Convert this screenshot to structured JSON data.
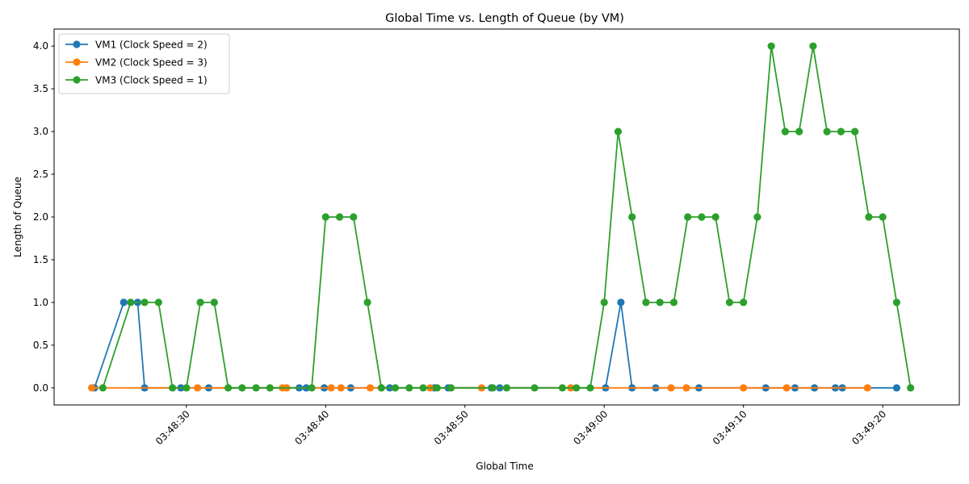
{
  "chart_data": {
    "type": "line",
    "title": "Global Time vs. Length of Queue (by VM)",
    "xlabel": "Global Time",
    "ylabel": "Length of Queue",
    "x_unit": "time (HH:MM:SS, 03:48:20 – 03:49:25)",
    "xlim": [
      "03:48:20.5",
      "03:49:25.5"
    ],
    "ylim": [
      -0.2,
      4.2
    ],
    "x_ticks": [
      "03:48:30",
      "03:48:40",
      "03:48:50",
      "03:49:00",
      "03:49:10",
      "03:49:20"
    ],
    "y_ticks": [
      "0.0",
      "0.5",
      "1.0",
      "1.5",
      "2.0",
      "2.5",
      "3.0",
      "3.5",
      "4.0"
    ],
    "legend_position": "upper-left",
    "grid": false,
    "series": [
      {
        "name": "VM1 (Clock Speed = 2)",
        "color": "#1f77b4",
        "points": [
          [
            "03:48:23.4",
            0
          ],
          [
            "03:48:25.5",
            1
          ],
          [
            "03:48:26.5",
            1
          ],
          [
            "03:48:27.0",
            0
          ],
          [
            "03:48:29.6",
            0
          ],
          [
            "03:48:31.6",
            0
          ],
          [
            "03:48:38.1",
            0
          ],
          [
            "03:48:38.6",
            0
          ],
          [
            "03:48:39.9",
            0
          ],
          [
            "03:48:41.8",
            0
          ],
          [
            "03:48:44.6",
            0
          ],
          [
            "03:48:47.8",
            0
          ],
          [
            "03:48:48.8",
            0
          ],
          [
            "03:48:51.9",
            0
          ],
          [
            "03:48:52.5",
            0
          ],
          [
            "03:49:00.1",
            0
          ],
          [
            "03:49:01.2",
            1
          ],
          [
            "03:49:02.0",
            0
          ],
          [
            "03:49:03.7",
            0
          ],
          [
            "03:49:06.8",
            0
          ],
          [
            "03:49:11.6",
            0
          ],
          [
            "03:49:13.7",
            0
          ],
          [
            "03:49:15.1",
            0
          ],
          [
            "03:49:16.6",
            0
          ],
          [
            "03:49:17.1",
            0
          ],
          [
            "03:49:21.0",
            0
          ]
        ]
      },
      {
        "name": "VM2 (Clock Speed = 3)",
        "color": "#ff7f0e",
        "points": [
          [
            "03:48:23.2",
            0
          ],
          [
            "03:48:30.8",
            0
          ],
          [
            "03:48:36.9",
            0
          ],
          [
            "03:48:37.2",
            0
          ],
          [
            "03:48:40.4",
            0
          ],
          [
            "03:48:41.1",
            0
          ],
          [
            "03:48:43.2",
            0
          ],
          [
            "03:48:44.0",
            0
          ],
          [
            "03:48:47.5",
            0
          ],
          [
            "03:48:51.2",
            0
          ],
          [
            "03:48:57.6",
            0
          ],
          [
            "03:49:04.8",
            0
          ],
          [
            "03:49:05.9",
            0
          ],
          [
            "03:49:10.0",
            0
          ],
          [
            "03:49:13.1",
            0
          ],
          [
            "03:49:18.9",
            0
          ]
        ]
      },
      {
        "name": "VM3 (Clock Speed = 1)",
        "color": "#2ca02c",
        "points": [
          [
            "03:48:24.0",
            0
          ],
          [
            "03:48:26.0",
            1
          ],
          [
            "03:48:27.0",
            1
          ],
          [
            "03:48:28.0",
            1
          ],
          [
            "03:48:29.0",
            0
          ],
          [
            "03:48:30.0",
            0
          ],
          [
            "03:48:31.0",
            1
          ],
          [
            "03:48:32.0",
            1
          ],
          [
            "03:48:33.0",
            0
          ],
          [
            "03:48:34.0",
            0
          ],
          [
            "03:48:35.0",
            0
          ],
          [
            "03:48:36.0",
            0
          ],
          [
            "03:48:39.0",
            0
          ],
          [
            "03:48:40.0",
            2
          ],
          [
            "03:48:41.0",
            2
          ],
          [
            "03:48:42.0",
            2
          ],
          [
            "03:48:43.0",
            1
          ],
          [
            "03:48:44.0",
            0
          ],
          [
            "03:48:45.0",
            0
          ],
          [
            "03:48:46.0",
            0
          ],
          [
            "03:48:47.0",
            0
          ],
          [
            "03:48:48.0",
            0
          ],
          [
            "03:48:49.0",
            0
          ],
          [
            "03:48:52.0",
            0
          ],
          [
            "03:48:53.0",
            0
          ],
          [
            "03:48:55.0",
            0
          ],
          [
            "03:48:57.0",
            0
          ],
          [
            "03:48:58.0",
            0
          ],
          [
            "03:48:59.0",
            0
          ],
          [
            "03:49:00.0",
            1
          ],
          [
            "03:49:01.0",
            3
          ],
          [
            "03:49:02.0",
            2
          ],
          [
            "03:49:03.0",
            1
          ],
          [
            "03:49:04.0",
            1
          ],
          [
            "03:49:05.0",
            1
          ],
          [
            "03:49:06.0",
            2
          ],
          [
            "03:49:07.0",
            2
          ],
          [
            "03:49:08.0",
            2
          ],
          [
            "03:49:09.0",
            1
          ],
          [
            "03:49:10.0",
            1
          ],
          [
            "03:49:11.0",
            2
          ],
          [
            "03:49:12.0",
            4
          ],
          [
            "03:49:13.0",
            3
          ],
          [
            "03:49:14.0",
            3
          ],
          [
            "03:49:15.0",
            4
          ],
          [
            "03:49:16.0",
            3
          ],
          [
            "03:49:17.0",
            3
          ],
          [
            "03:49:18.0",
            3
          ],
          [
            "03:49:19.0",
            2
          ],
          [
            "03:49:20.0",
            2
          ],
          [
            "03:49:21.0",
            1
          ],
          [
            "03:49:22.0",
            0
          ]
        ]
      }
    ]
  }
}
